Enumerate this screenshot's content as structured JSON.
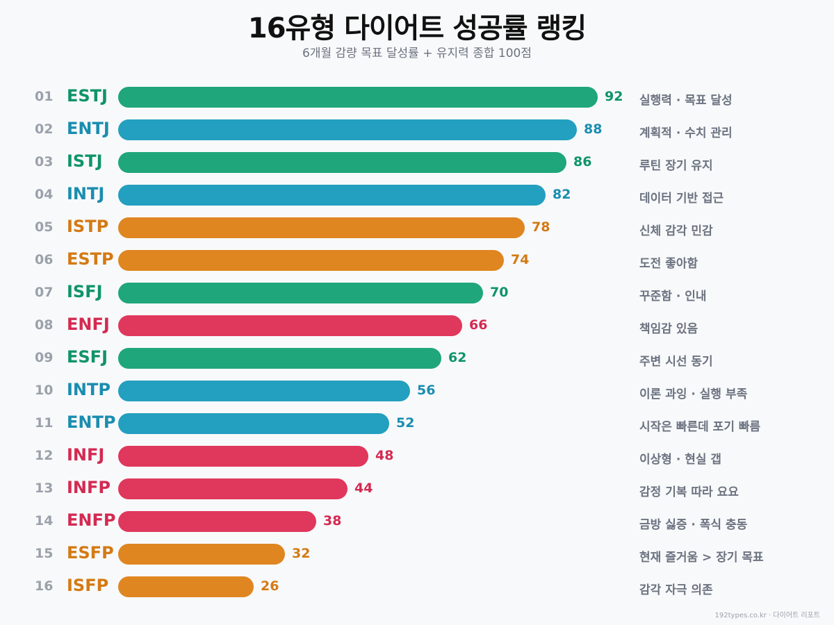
{
  "colors": {
    "green": "#1fa67a",
    "blue": "#239fc0",
    "orange": "#df8621",
    "red": "#e0375c"
  },
  "text_colors": {
    "green": "#0f9468",
    "blue": "#1a8db0",
    "orange": "#d47a14",
    "red": "#d42a52"
  },
  "chart_data": {
    "type": "bar",
    "orientation": "horizontal",
    "title": "16유형 다이어트 성공률 랭킹",
    "subtitle": "6개월 감량 목표 달성률 + 유지력 종합 100점",
    "xlim": [
      0,
      100
    ],
    "grid": false,
    "rows": [
      {
        "rank": "01",
        "type": "ESTJ",
        "value": 92,
        "color": "green",
        "desc": "실행력 · 목표 달성"
      },
      {
        "rank": "02",
        "type": "ENTJ",
        "value": 88,
        "color": "blue",
        "desc": "계획적 · 수치 관리"
      },
      {
        "rank": "03",
        "type": "ISTJ",
        "value": 86,
        "color": "green",
        "desc": "루틴 장기 유지"
      },
      {
        "rank": "04",
        "type": "INTJ",
        "value": 82,
        "color": "blue",
        "desc": "데이터 기반 접근"
      },
      {
        "rank": "05",
        "type": "ISTP",
        "value": 78,
        "color": "orange",
        "desc": "신체 감각 민감"
      },
      {
        "rank": "06",
        "type": "ESTP",
        "value": 74,
        "color": "orange",
        "desc": "도전 좋아함"
      },
      {
        "rank": "07",
        "type": "ISFJ",
        "value": 70,
        "color": "green",
        "desc": "꾸준함 · 인내"
      },
      {
        "rank": "08",
        "type": "ENFJ",
        "value": 66,
        "color": "red",
        "desc": "책임감 있음"
      },
      {
        "rank": "09",
        "type": "ESFJ",
        "value": 62,
        "color": "green",
        "desc": "주변 시선 동기"
      },
      {
        "rank": "10",
        "type": "INTP",
        "value": 56,
        "color": "blue",
        "desc": "이론 과잉 · 실행 부족"
      },
      {
        "rank": "11",
        "type": "ENTP",
        "value": 52,
        "color": "blue",
        "desc": "시작은 빠른데 포기 빠름"
      },
      {
        "rank": "12",
        "type": "INFJ",
        "value": 48,
        "color": "red",
        "desc": "이상형 · 현실 갭"
      },
      {
        "rank": "13",
        "type": "INFP",
        "value": 44,
        "color": "red",
        "desc": "감정 기복 따라 요요"
      },
      {
        "rank": "14",
        "type": "ENFP",
        "value": 38,
        "color": "red",
        "desc": "금방 싫증 · 폭식 충동"
      },
      {
        "rank": "15",
        "type": "ESFP",
        "value": 32,
        "color": "orange",
        "desc": "현재 즐거움 > 장기 목표"
      },
      {
        "rank": "16",
        "type": "ISFP",
        "value": 26,
        "color": "orange",
        "desc": "감각 자극 의존"
      }
    ]
  },
  "footer": "192types.co.kr · 다이어트 리포트"
}
